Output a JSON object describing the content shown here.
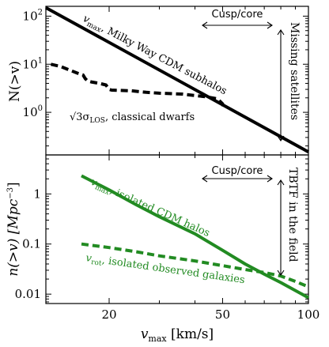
{
  "chart_data": [
    {
      "type": "line",
      "panel": "top",
      "ylabel": "N(>v)",
      "yscale": "log",
      "xscale": "log",
      "xlim": [
        12,
        100
      ],
      "ylim": [
        0.13,
        160
      ],
      "y_ticks": [
        {
          "value": 1,
          "label": "10",
          "exp": "0"
        },
        {
          "value": 10,
          "label": "10",
          "exp": "1"
        },
        {
          "value": 100,
          "label": "10",
          "exp": "2"
        }
      ],
      "series": [
        {
          "name": "v_max, Milky Way CDM subhalos",
          "label_main": "v",
          "label_sub": "max",
          "label_rest": ", Milky Way CDM subhalos",
          "color": "#000000",
          "style": "solid",
          "x": [
            12,
            100
          ],
          "y": [
            150,
            0.15
          ]
        },
        {
          "name": "√3 σ_LOS, classical dwarfs",
          "label_main": "√3σ",
          "label_sub": "LOS",
          "label_rest": ", classical dwarfs",
          "color": "#000000",
          "style": "dashed",
          "x": [
            12.5,
            13.5,
            14.5,
            15.5,
            16.2,
            16.5,
            16.8,
            17.3,
            18.5,
            19.5,
            20.0,
            20.4,
            24,
            27,
            30,
            36,
            44,
            48,
            50,
            50.5
          ],
          "y": [
            10,
            9.0,
            7.6,
            6.5,
            6.0,
            5.0,
            4.5,
            4.3,
            4.0,
            3.7,
            3.0,
            2.9,
            2.8,
            2.6,
            2.5,
            2.4,
            2.1,
            1.9,
            1.5,
            1.2
          ]
        }
      ],
      "annotations": [
        {
          "text": "Cusp/core",
          "kind": "horizontal-arrow",
          "x_range": [
            40,
            80
          ]
        },
        {
          "text": "Missing satellites",
          "kind": "vertical-arrow"
        }
      ]
    },
    {
      "type": "line",
      "panel": "bottom",
      "xlabel": "v_max [km/s]",
      "xlabel_main": "v",
      "xlabel_sub": "max",
      "xlabel_rest": " [km/s]",
      "ylabel": "n(>v) [Mpc^-3]",
      "ylabel_main": "n(>v) [Mpc",
      "ylabel_sup": "−3",
      "ylabel_end": "]",
      "yscale": "log",
      "xscale": "log",
      "xlim": [
        12,
        100
      ],
      "ylim": [
        0.0065,
        6
      ],
      "x_ticks": [
        {
          "value": 20,
          "label": "20"
        },
        {
          "value": 50,
          "label": "50"
        },
        {
          "value": 100,
          "label": "100"
        }
      ],
      "y_ticks": [
        {
          "value": 0.01,
          "label": "0.01"
        },
        {
          "value": 0.1,
          "label": "0.1"
        },
        {
          "value": 1,
          "label": "1"
        }
      ],
      "series": [
        {
          "name": "v_max, isolated CDM halos",
          "label_main": "v",
          "label_sub": "max",
          "label_rest": ", isolated CDM halos",
          "color": "#228B22",
          "style": "solid",
          "x": [
            16,
            20,
            25,
            30,
            40,
            50,
            60,
            70,
            80,
            100
          ],
          "y": [
            2.3,
            1.2,
            0.6,
            0.35,
            0.16,
            0.075,
            0.04,
            0.025,
            0.017,
            0.0085
          ]
        },
        {
          "name": "v_rot, isolated observed galaxies",
          "label_main": "v",
          "label_sub": "rot",
          "label_rest": ", isolated observed galaxies",
          "color": "#228B22",
          "style": "dashed",
          "x": [
            16,
            20,
            25,
            30,
            40,
            50,
            60,
            70,
            80,
            90,
            100
          ],
          "y": [
            0.1,
            0.085,
            0.07,
            0.058,
            0.046,
            0.037,
            0.031,
            0.027,
            0.023,
            0.018,
            0.014
          ]
        }
      ],
      "annotations": [
        {
          "text": "Cusp/core",
          "kind": "horizontal-arrow",
          "x_range": [
            40,
            80
          ]
        },
        {
          "text": "TBTF in the field",
          "kind": "vertical-arrow"
        }
      ]
    }
  ]
}
